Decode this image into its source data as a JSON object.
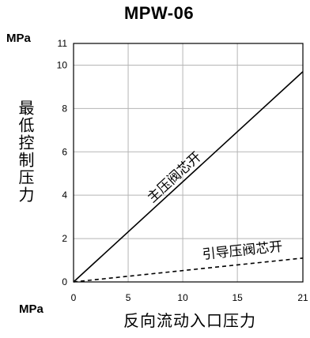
{
  "chart_data": {
    "type": "line",
    "title": "MPW-06",
    "y_unit": "MPa",
    "x_unit": "MPa",
    "ylabel": "最低控制压力",
    "xlabel": "反向流动入口压力",
    "xlim": [
      0,
      21
    ],
    "ylim": [
      0,
      11
    ],
    "x_ticks": [
      "0",
      "5",
      "10",
      "15",
      "21"
    ],
    "x_tick_values": [
      0,
      5,
      10,
      15,
      21
    ],
    "y_ticks": [
      "0",
      "2",
      "4",
      "6",
      "8",
      "10",
      "11"
    ],
    "y_tick_values": [
      0,
      2,
      4,
      6,
      8,
      10,
      11
    ],
    "grid": true,
    "series": [
      {
        "name": "主压阀芯开",
        "line_style": "solid",
        "x": [
          0,
          21
        ],
        "y": [
          0,
          9.7
        ]
      },
      {
        "name": "引导压阀芯开",
        "line_style": "dashed",
        "x": [
          0,
          21
        ],
        "y": [
          0,
          1.1
        ]
      }
    ]
  }
}
